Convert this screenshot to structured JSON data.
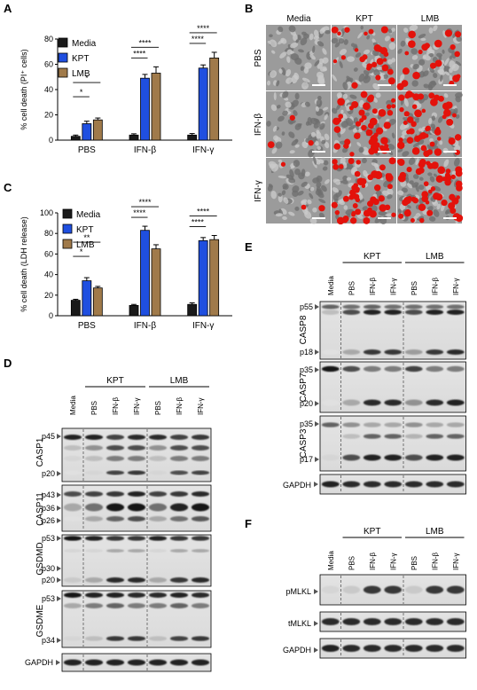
{
  "panels": {
    "a": "A",
    "b": "B",
    "c": "C",
    "d": "D",
    "e": "E",
    "f": "F"
  },
  "chart_data": [
    {
      "type": "bar",
      "panel": "A",
      "ylabel": "% cell death (PI⁺ cells)",
      "categories": [
        "PBS",
        "IFN-β",
        "IFN-γ"
      ],
      "series": [
        {
          "name": "Media",
          "values": [
            3,
            4,
            4
          ],
          "errors": [
            1,
            1,
            1.2
          ],
          "color": "#1a1a1a"
        },
        {
          "name": "KPT",
          "values": [
            13,
            49,
            57
          ],
          "errors": [
            2,
            3,
            2.5
          ],
          "color": "#1f4fe0"
        },
        {
          "name": "LMB",
          "values": [
            16,
            53,
            65
          ],
          "errors": [
            1.5,
            5,
            4.5
          ],
          "color": "#a07a4a"
        }
      ],
      "ylim": [
        0,
        80
      ],
      "yticks": [
        0,
        20,
        40,
        60,
        80
      ],
      "significance": [
        "*",
        "*",
        "****",
        "****",
        "****",
        "****"
      ]
    },
    {
      "type": "bar",
      "panel": "C",
      "ylabel": "% cell death (LDH release)",
      "categories": [
        "PBS",
        "IFN-β",
        "IFN-γ"
      ],
      "series": [
        {
          "name": "Media",
          "values": [
            15,
            10,
            11
          ],
          "errors": [
            1,
            1,
            1.5
          ],
          "color": "#1a1a1a"
        },
        {
          "name": "KPT",
          "values": [
            34,
            83,
            73
          ],
          "errors": [
            3,
            4,
            3
          ],
          "color": "#1f4fe0"
        },
        {
          "name": "LMB",
          "values": [
            27,
            65,
            74
          ],
          "errors": [
            1.5,
            4,
            4
          ],
          "color": "#a07a4a"
        }
      ],
      "ylim": [
        0,
        100
      ],
      "yticks": [
        0,
        20,
        40,
        60,
        80,
        100
      ],
      "significance": [
        "**",
        "*",
        "****",
        "****",
        "****",
        "****"
      ]
    }
  ],
  "micro": {
    "cols": [
      "Media",
      "KPT",
      "LMB"
    ],
    "rows": [
      "PBS",
      "IFN-β",
      "IFN-γ"
    ],
    "red_level": [
      [
        0,
        0.45,
        0.35
      ],
      [
        0.05,
        0.8,
        0.85
      ],
      [
        0.05,
        0.85,
        0.9
      ]
    ]
  },
  "blot_d": {
    "header_groups": [
      "KPT",
      "LMB"
    ],
    "lanes": [
      "Media",
      "PBS",
      "IFN-β",
      "IFN-γ",
      "PBS",
      "IFN-β",
      "IFN-γ"
    ],
    "proteins": [
      "CASP1",
      "CASP11",
      "GSDMD",
      "GSDME"
    ],
    "markers": {
      "CASP1": [
        "p45",
        "p20"
      ],
      "CASP11": [
        "p43",
        "p36",
        "p26"
      ],
      "GSDMD": [
        "p53",
        "p30",
        "p20"
      ],
      "GSDME": [
        "p53",
        "p34"
      ]
    },
    "loading": "GAPDH"
  },
  "blot_e": {
    "header_groups": [
      "KPT",
      "LMB"
    ],
    "lanes": [
      "Media",
      "PBS",
      "IFN-β",
      "IFN-γ",
      "PBS",
      "IFN-β",
      "IFN-γ"
    ],
    "proteins": [
      "CASP8",
      "CASP7",
      "CASP3"
    ],
    "markers": {
      "CASP8": [
        "p55",
        "p18"
      ],
      "CASP7": [
        "p35",
        "p20"
      ],
      "CASP3": [
        "p35",
        "p17"
      ]
    },
    "loading": "GAPDH"
  },
  "blot_f": {
    "header_groups": [
      "KPT",
      "LMB"
    ],
    "lanes": [
      "Media",
      "PBS",
      "IFN-β",
      "IFN-γ",
      "PBS",
      "IFN-β",
      "IFN-γ"
    ],
    "rows": [
      "pMLKL",
      "tMLKL",
      "GAPDH"
    ]
  }
}
